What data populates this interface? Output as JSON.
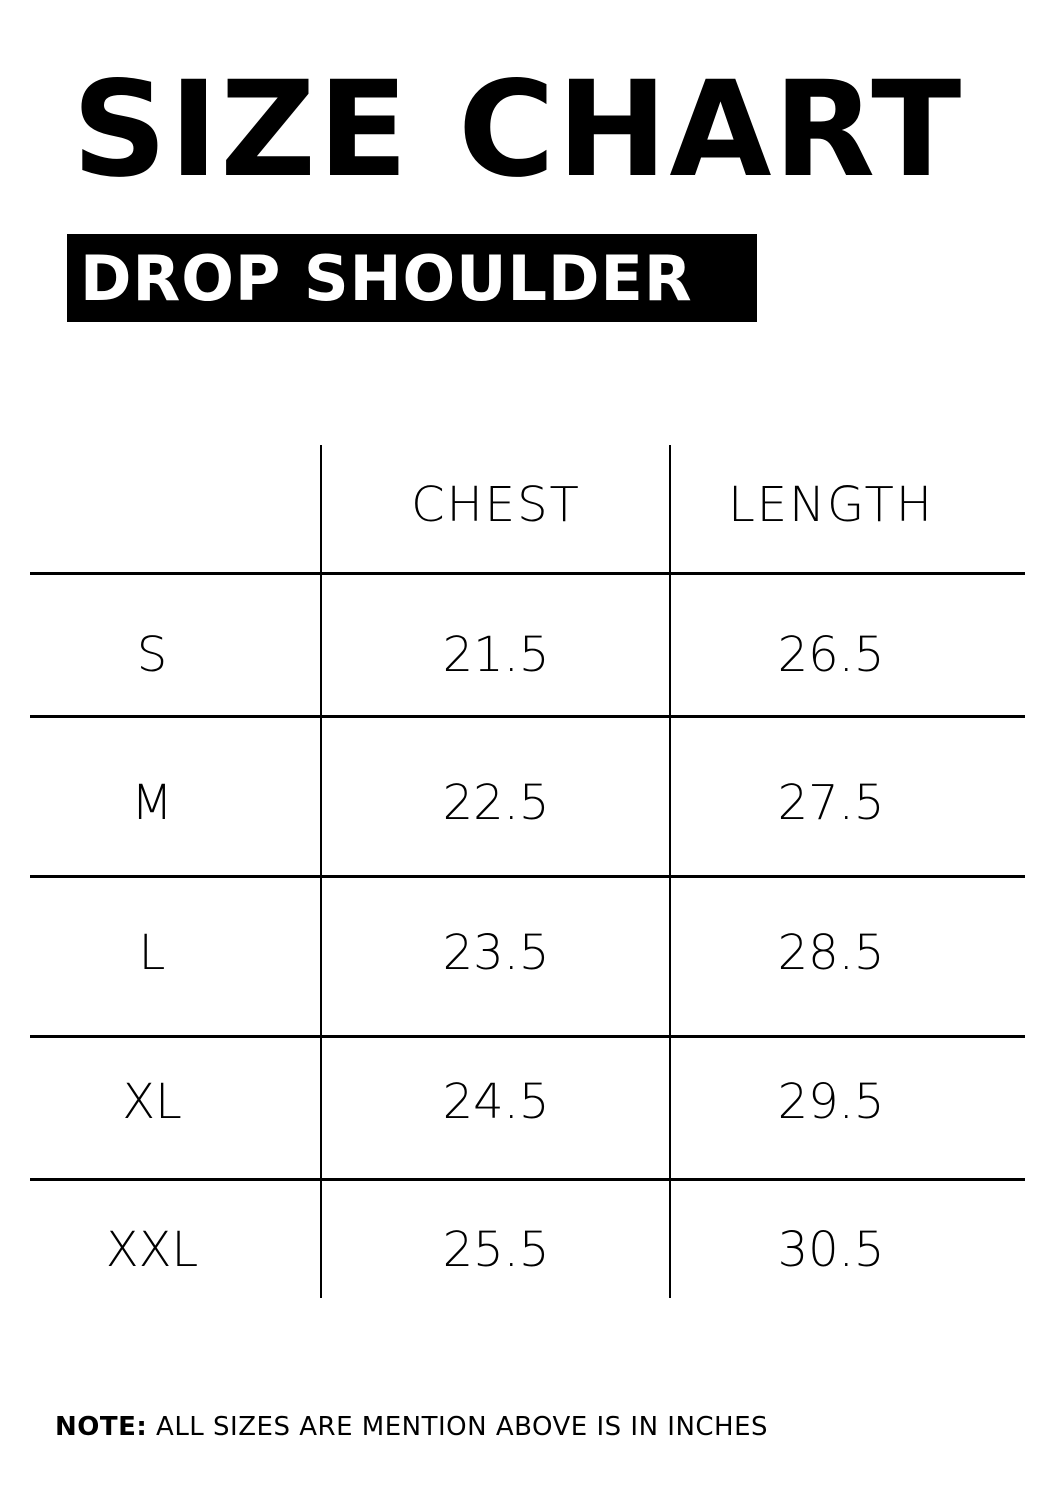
{
  "title": "SIZE CHART",
  "subtitle": "DROP SHOULDER",
  "table": {
    "headers": [
      "",
      "CHEST",
      "LENGTH"
    ],
    "rows": [
      {
        "size": "S",
        "chest": "21.5",
        "length": "26.5"
      },
      {
        "size": "M",
        "chest": "22.5",
        "length": "27.5"
      },
      {
        "size": "L",
        "chest": "23.5",
        "length": "28.5"
      },
      {
        "size": "XL",
        "chest": "24.5",
        "length": "29.5"
      },
      {
        "size": "XXL",
        "chest": "25.5",
        "length": "30.5"
      }
    ]
  },
  "note": {
    "label": "NOTE:",
    "text": " ALL SIZES ARE MENTION ABOVE IS IN INCHES"
  }
}
